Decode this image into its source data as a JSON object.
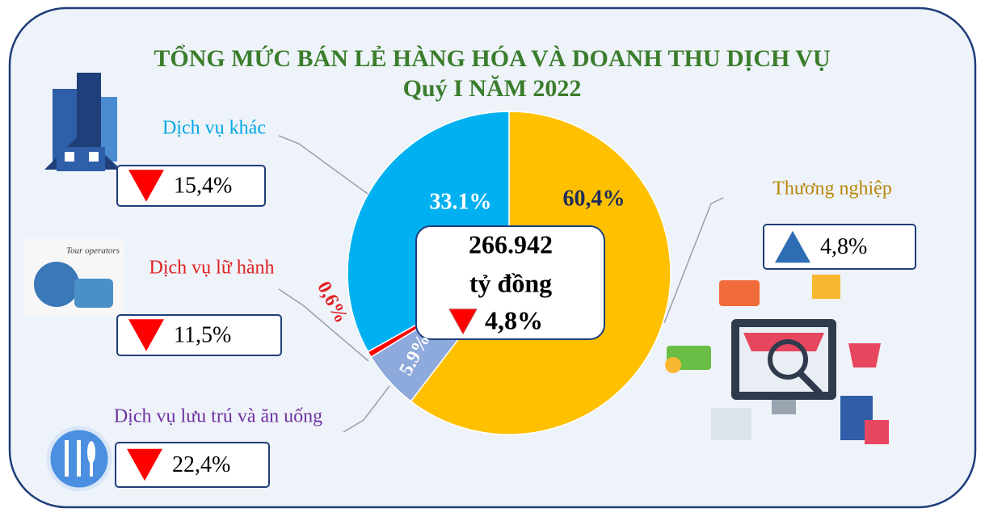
{
  "chart_data": {
    "type": "pie",
    "title": "TỔNG MỨC BÁN LẺ HÀNG HÓA VÀ DOANH THU DỊCH VỤ",
    "subtitle": "Quý I NĂM 2022",
    "categories": [
      "Thương nghiệp",
      "Dịch vụ lưu trú và ăn uống",
      "Dịch vụ lữ hành",
      "Dịch vụ khác"
    ],
    "values": [
      60.4,
      5.9,
      0.6,
      33.1
    ],
    "value_labels": [
      "60,4%",
      "5.9%",
      "0,6%",
      "33.1%"
    ],
    "colors": [
      "#FFC000",
      "#8EA9DB",
      "#FF0000",
      "#00B0F0"
    ],
    "changes": [
      "4,8%",
      "22,4%",
      "11,5%",
      "15,4%"
    ],
    "change_directions": [
      "up",
      "down",
      "down",
      "down"
    ],
    "total": {
      "value": "266.942",
      "unit": "tỷ đồng",
      "change": "4,8%",
      "direction": "down"
    }
  }
}
